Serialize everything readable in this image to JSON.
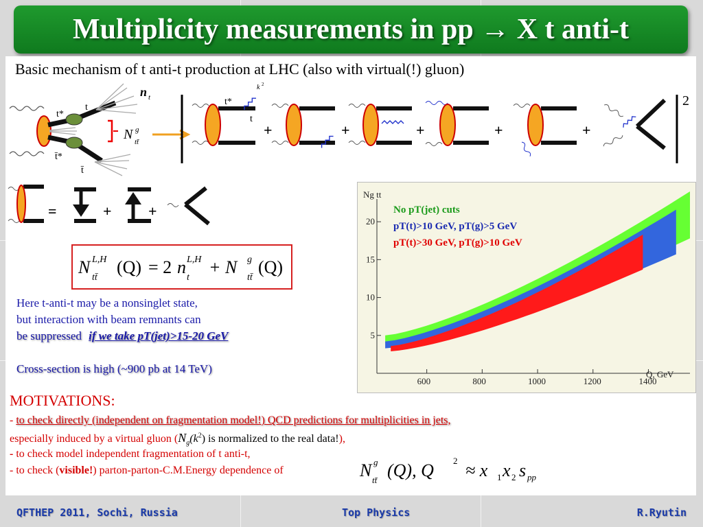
{
  "header": {
    "title": "Multiplicity measurements in pp → X t anti-t"
  },
  "subtitle": "Basic mechanism of t anti-t production at LHC (also with virtual(!) gluon)",
  "diagram": {
    "jet_labels": {
      "t_star": "t*",
      "t": "t",
      "tbar_star": "t̄*",
      "tbar": "t̄"
    },
    "n_symbol": "n",
    "n_sub": "t",
    "N_symbol": "N",
    "N_sup": "g",
    "N_sub": "tt̄",
    "k2": "k",
    "k2_exp": "2",
    "plus": "+",
    "equals": "=",
    "square_exp": "2"
  },
  "formula": {
    "N": "N",
    "sub": "tt̄",
    "sup_LH": "L,H",
    "Q": "(Q)",
    "eq": "= 2",
    "n": "n",
    "n_sub": "t",
    "plus": "+ N",
    "sup_g": "g"
  },
  "notes": {
    "line1": "Here t-anti-t may be a nonsinglet state,",
    "line2": "but interaction with beam remnants can",
    "line3_prefix": "be suppressed",
    "line3_emph": "if we take pT(jet)>15-20 GeV",
    "cross_section": "Cross-section is high (~900 pb at 14 TeV)"
  },
  "chart_data": {
    "type": "area",
    "title": "Ng tt",
    "xlabel": "Q, GeV",
    "ylabel": "",
    "xlim": [
      420,
      1550
    ],
    "ylim": [
      0,
      23
    ],
    "xticks": [
      600,
      800,
      1000,
      1200,
      1400
    ],
    "yticks": [
      5,
      10,
      15,
      20
    ],
    "series": [
      {
        "name": "No pT(jet) cuts",
        "color": "#66ff33",
        "x": [
          450,
          1550
        ],
        "lower": [
          4.0,
          17.8
        ],
        "upper": [
          5.0,
          24.0
        ]
      },
      {
        "name": "pT(t)>10 GeV, pT(g)>5 GeV",
        "color": "#3366dd",
        "x": [
          450,
          1500
        ],
        "lower": [
          3.3,
          15.7
        ],
        "upper": [
          4.2,
          21.6
        ]
      },
      {
        "name": "pT(t)>30 GeV, pT(g)>10 GeV",
        "color": "#ff1a1a",
        "x": [
          470,
          1380
        ],
        "lower": [
          2.9,
          13.7
        ],
        "upper": [
          3.6,
          18.3
        ]
      }
    ]
  },
  "motivations": {
    "heading": "MOTIVATIONS:",
    "item1_dash": "- ",
    "item1": "to check directly (independent on fragmentation model!) QCD predictions for multiplicities in jets,",
    "item2a": "especially induced by a virtual gluon  (",
    "item2_N": "N",
    "item2_sub": "g",
    "item2_k": "(k",
    "item2_exp": "2",
    "item2_close": ")",
    "item2b": " is normalized to the real data!",
    "item2c": "),",
    "item3_dash": "-",
    "item3": " to check model independent fragmentation of t anti-t,",
    "item4a": "- to check  (",
    "item4_bold": "visible!",
    "item4b": ") parton-parton-C.M.Energy dependence of",
    "eq_N": "N",
    "eq_sup": "g",
    "eq_sub": "tt̄",
    "eq_Q": "(Q),  Q",
    "eq_exp": "2",
    "eq_approx": "≈ x",
    "eq_1": "1",
    "eq_x2": "x",
    "eq_2": "2",
    "eq_s": "s",
    "eq_pp": "pp"
  },
  "footer": {
    "left": "QFTHEP 2011, Sochi, Russia",
    "center": "Top Physics",
    "right": "R.Ryutin"
  }
}
